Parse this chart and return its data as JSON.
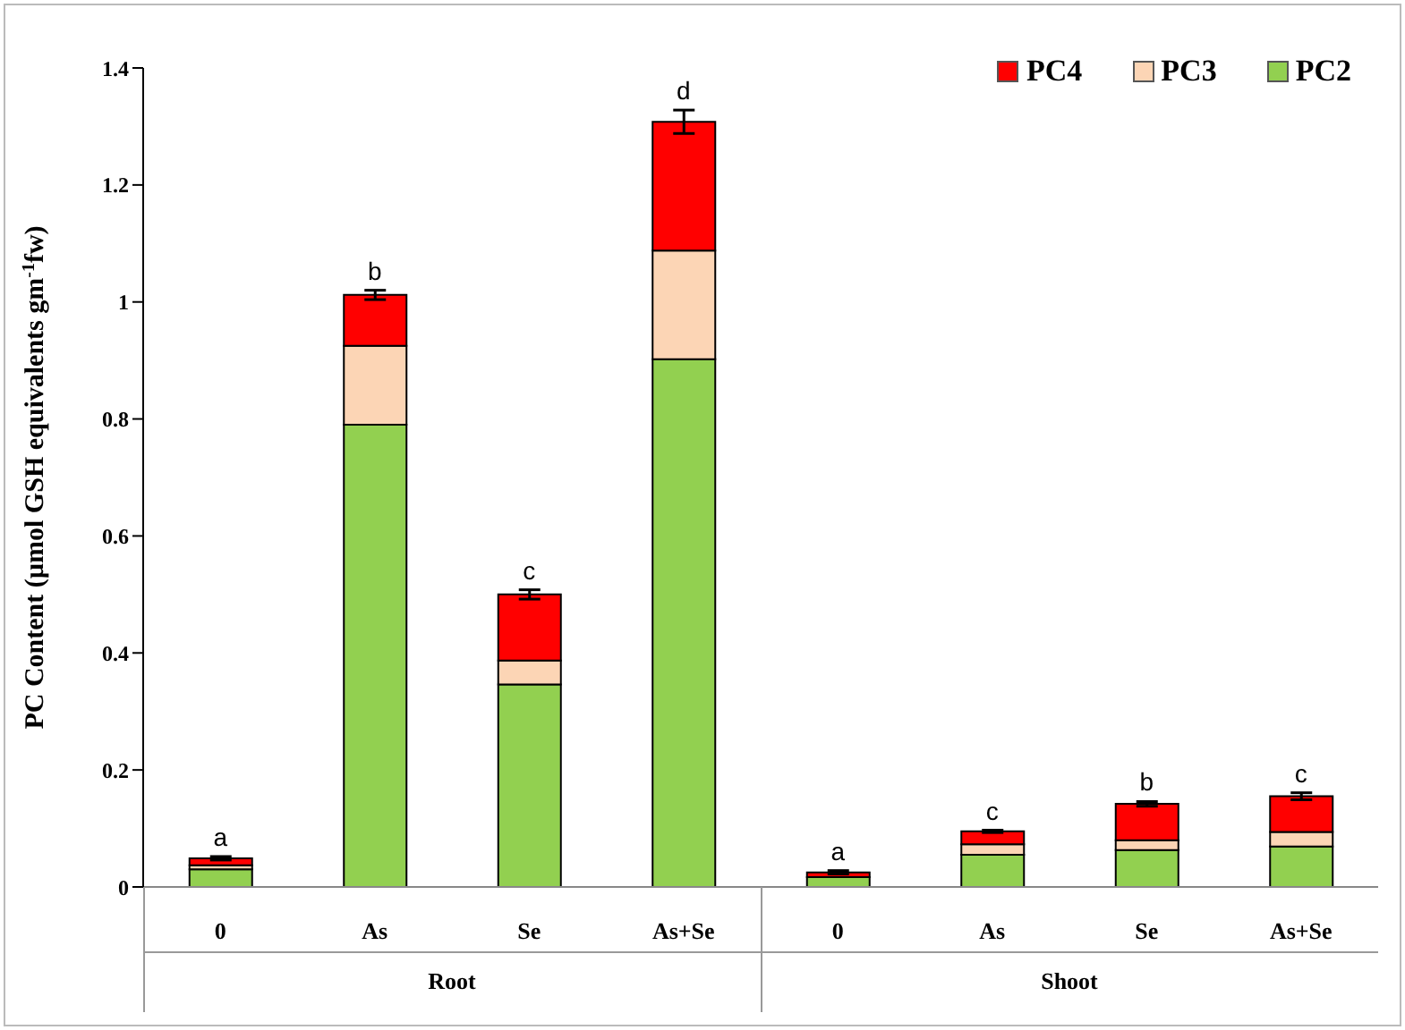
{
  "chart_data": {
    "type": "bar",
    "stacked": true,
    "ylabel": "PC Content (µmol GSH equivalents gm$^{-1}$fw)",
    "categories": [
      "0",
      "As",
      "Se",
      "As+Se",
      "0",
      "As",
      "Se",
      "As+Se"
    ],
    "series": [
      {
        "name": "PC2",
        "color": "#92d050",
        "values": [
          0.03,
          0.79,
          0.346,
          0.902,
          0.017,
          0.055,
          0.063,
          0.069
        ]
      },
      {
        "name": "PC3",
        "color": "#fcd5b5",
        "values": [
          0.007,
          0.135,
          0.041,
          0.186,
          null,
          0.018,
          0.017,
          0.025
        ]
      },
      {
        "name": "PC4",
        "color": "#ff0000",
        "values": [
          0.012,
          0.087,
          0.113,
          0.22,
          0.008,
          0.022,
          0.062,
          0.061
        ],
        "errors": [
          0.003,
          0.008,
          0.008,
          0.02,
          0.003,
          0.002,
          0.004,
          0.006
        ]
      }
    ],
    "ylim": [
      0,
      1.4
    ],
    "yticks": [
      0,
      0.2,
      0.4,
      0.6,
      0.8,
      1,
      1.2,
      1.4
    ],
    "legend": "top right",
    "annotations": [
      "a",
      "b",
      "c",
      "d",
      "a",
      "c",
      "b",
      "c",
      "Root",
      "Shoot"
    ]
  }
}
